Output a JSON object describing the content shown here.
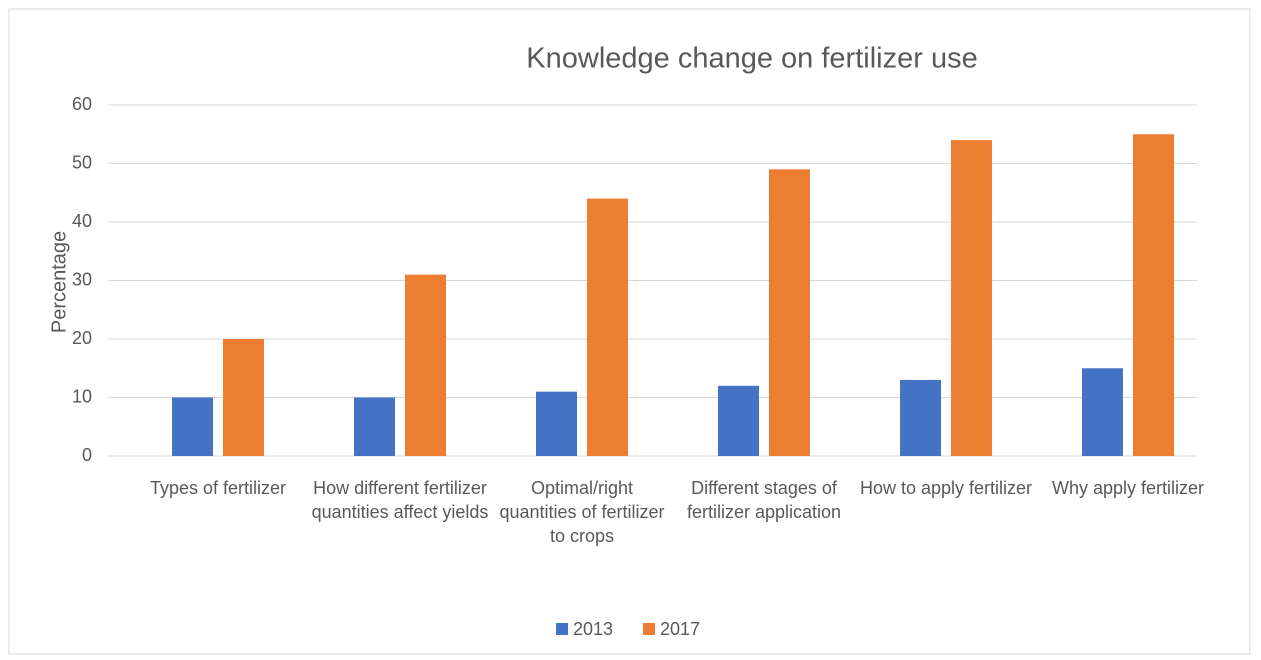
{
  "chart_data": {
    "type": "bar",
    "title": "Knowledge change on fertilizer use",
    "y_label": "Percentage",
    "categories": [
      "Types of fertilizer",
      "How different fertilizer quantities affect yields",
      "Optimal/right quantities of fertilizer to crops",
      "Different stages of fertilizer application",
      "How to apply fertilizer",
      "Why apply fertilizer"
    ],
    "series": [
      {
        "name": "2013",
        "color": "#4472c4",
        "values": [
          10,
          10,
          11,
          12,
          13,
          15
        ]
      },
      {
        "name": "2017",
        "color": "#ed7d31",
        "values": [
          20,
          31,
          44,
          49,
          54,
          55
        ]
      }
    ],
    "ylim": [
      0,
      60
    ],
    "yticks": [
      0,
      10,
      20,
      30,
      40,
      50,
      60
    ],
    "grid": true,
    "legend": "bottom"
  }
}
